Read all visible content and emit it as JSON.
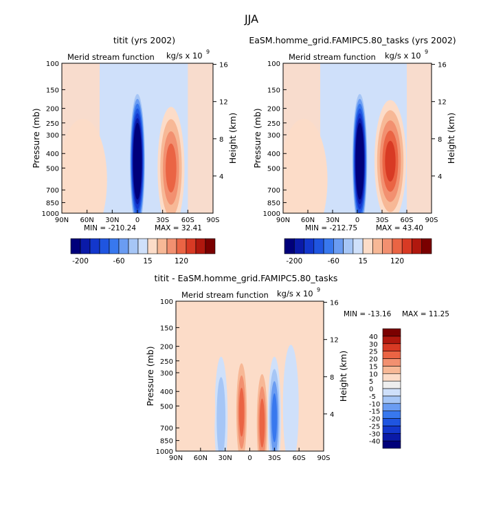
{
  "figure": {
    "title": "JJA"
  },
  "colors": {
    "main_scale": [
      "#00007a",
      "#0a1aa8",
      "#1337cc",
      "#1f55e0",
      "#3878ee",
      "#6a9cf2",
      "#a6c6f6",
      "#cfe0fa",
      "#fcdcc8",
      "#f7b896",
      "#f29070",
      "#ea6444",
      "#d83a24",
      "#b0180e",
      "#7a0000"
    ],
    "diff_scale": [
      "#00007a",
      "#0a1aa8",
      "#1337cc",
      "#1f55e0",
      "#3878ee",
      "#6a9cf2",
      "#a6c6f6",
      "#cfe0fa",
      "#eeeeee",
      "#fcdcc8",
      "#f7b896",
      "#f29070",
      "#ea6444",
      "#d83a24",
      "#b0180e",
      "#7a0000"
    ]
  },
  "chart_data": [
    {
      "type": "heatmap",
      "title": "titit (yrs 2002)",
      "field_label": "Merid stream function",
      "units": "kg/s x 10",
      "units_exponent": "9",
      "xlabel": "",
      "ylabel": "Pressure (mb)",
      "ylabel_right": "Height (km)",
      "x_ticks": [
        "90N",
        "60N",
        "30N",
        "0",
        "30S",
        "60S",
        "90S"
      ],
      "xlim": [
        90,
        -90
      ],
      "y_ticks": [
        100,
        150,
        200,
        250,
        300,
        400,
        500,
        700,
        850,
        1000
      ],
      "ylim": [
        1000,
        100
      ],
      "y_right_ticks": [
        4,
        8,
        12,
        16
      ],
      "min_label": "MIN = -210.24",
      "max_label": "MAX =  32.41",
      "min": -210.24,
      "max": 32.41,
      "colorbar_ticks": [
        "-200",
        "-60",
        "15",
        "120"
      ],
      "features": [
        {
          "sign": "neg",
          "level": 14,
          "lat": 0,
          "p": 450,
          "lat_halfwidth": 6,
          "p_halfwidth": 300
        },
        {
          "sign": "pos",
          "level": 4,
          "lat": -40,
          "p": 500,
          "lat_halfwidth": 10,
          "p_halfwidth": 280
        },
        {
          "sign": "pos",
          "level": 1,
          "lat": 65,
          "p": 600,
          "lat_halfwidth": 18,
          "p_halfwidth": 400
        }
      ]
    },
    {
      "type": "heatmap",
      "title": "EaSM.homme_grid.FAMIPC5.80_tasks (yrs 2002)",
      "field_label": "Merid stream function",
      "units": "kg/s x 10",
      "units_exponent": "9",
      "xlabel": "",
      "ylabel": "Pressure (mb)",
      "ylabel_right": "Height (km)",
      "x_ticks": [
        "90N",
        "60N",
        "30N",
        "0",
        "30S",
        "60S",
        "90S"
      ],
      "xlim": [
        90,
        -90
      ],
      "y_ticks": [
        100,
        150,
        200,
        250,
        300,
        400,
        500,
        700,
        850,
        1000
      ],
      "ylim": [
        1000,
        100
      ],
      "y_right_ticks": [
        4,
        8,
        12,
        16
      ],
      "min_label": "MIN = -212.75",
      "max_label": "MAX =  43.40",
      "min": -212.75,
      "max": 43.4,
      "colorbar_ticks": [
        "-200",
        "-60",
        "15",
        "120"
      ],
      "features": [
        {
          "sign": "neg",
          "level": 14,
          "lat": -3,
          "p": 450,
          "lat_halfwidth": 6,
          "p_halfwidth": 300
        },
        {
          "sign": "pos",
          "level": 5,
          "lat": -40,
          "p": 450,
          "lat_halfwidth": 12,
          "p_halfwidth": 300
        },
        {
          "sign": "pos",
          "level": 1,
          "lat": 65,
          "p": 600,
          "lat_halfwidth": 18,
          "p_halfwidth": 400
        }
      ]
    },
    {
      "type": "heatmap",
      "title": "titit - EaSM.homme_grid.FAMIPC5.80_tasks",
      "field_label": "Merid stream function",
      "units": "kg/s x 10",
      "units_exponent": "9",
      "xlabel": "",
      "ylabel": "Pressure (mb)",
      "ylabel_right": "Height (km)",
      "x_ticks": [
        "90N",
        "60N",
        "30N",
        "0",
        "30S",
        "60S",
        "90S"
      ],
      "xlim": [
        90,
        -90
      ],
      "y_ticks": [
        100,
        150,
        200,
        250,
        300,
        400,
        500,
        700,
        850,
        1000
      ],
      "ylim": [
        1000,
        100
      ],
      "y_right_ticks": [
        4,
        8,
        12,
        16
      ],
      "min_label": "MIN = -13.16",
      "max_label": "MAX =  11.25",
      "min": -13.16,
      "max": 11.25,
      "colorbar_ticks": [
        "-40",
        "-30",
        "-25",
        "-20",
        "-15",
        "-10",
        "-5",
        "0",
        "5",
        "10",
        "15",
        "20",
        "25",
        "30",
        "40"
      ],
      "features": [
        {
          "sign": "pos",
          "level": 4,
          "lat": 10,
          "p": 550,
          "lat_halfwidth": 5,
          "p_halfwidth": 250
        },
        {
          "sign": "pos",
          "level": 4,
          "lat": -15,
          "p": 650,
          "lat_halfwidth": 5,
          "p_halfwidth": 300
        },
        {
          "sign": "neg",
          "level": 4,
          "lat": -30,
          "p": 600,
          "lat_halfwidth": 5,
          "p_halfwidth": 300
        },
        {
          "sign": "neg",
          "level": 2,
          "lat": 35,
          "p": 600,
          "lat_halfwidth": 5,
          "p_halfwidth": 300
        },
        {
          "sign": "neg",
          "level": 1,
          "lat": -50,
          "p": 500,
          "lat_halfwidth": 6,
          "p_halfwidth": 350
        },
        {
          "sign": "pos",
          "level": 1,
          "lat": 55,
          "p": 500,
          "lat_halfwidth": 8,
          "p_halfwidth": 350
        }
      ]
    }
  ]
}
